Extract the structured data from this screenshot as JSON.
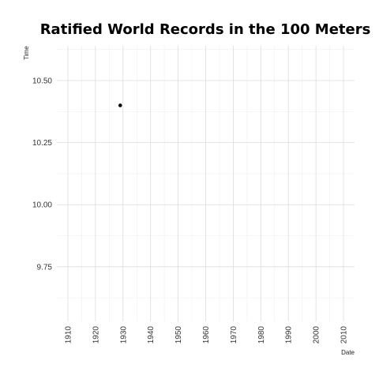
{
  "chart_data": {
    "type": "scatter",
    "title": "Ratified World Records in the 100 Meters",
    "xlabel": "Date",
    "ylabel": "Time",
    "x_ticks": [
      "1910",
      "1920",
      "1930",
      "1940",
      "1950",
      "1960",
      "1970",
      "1980",
      "1990",
      "2000",
      "2010"
    ],
    "y_ticks": [
      "9.75",
      "10.00",
      "10.25",
      "10.50"
    ],
    "xlim": [
      1906,
      2014
    ],
    "ylim": [
      9.53,
      10.64
    ],
    "grid": true,
    "series": [
      {
        "points": [
          {
            "x": 1929,
            "y": 10.4
          }
        ]
      }
    ],
    "colors": {
      "point": "#000000",
      "grid_major": "#dcdcdc",
      "grid_minor": "#efefef"
    }
  }
}
